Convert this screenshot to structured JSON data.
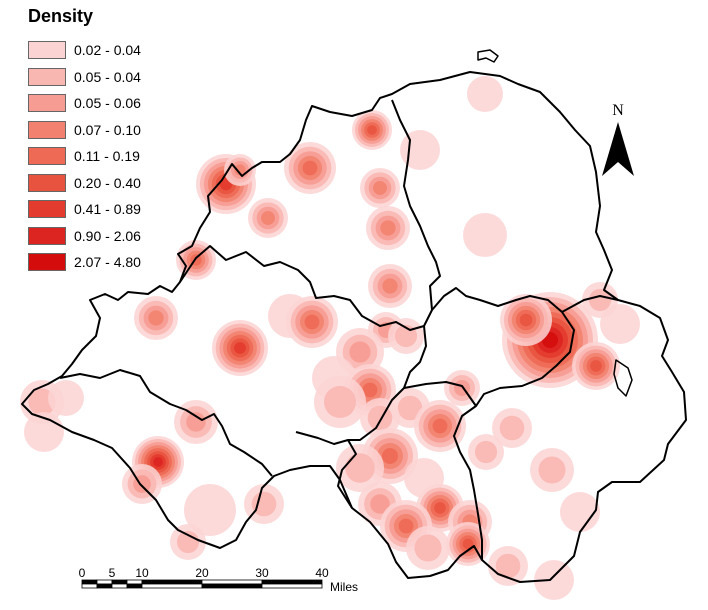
{
  "legend": {
    "title": "Density",
    "classes": [
      {
        "label": "0.02 - 0.04",
        "color": "#fcd3d3"
      },
      {
        "label": "0.05 - 0.04",
        "color": "#f9b7b2"
      },
      {
        "label": "0.05 - 0.06",
        "color": "#f69c92"
      },
      {
        "label": "0.07 - 0.10",
        "color": "#f2826f"
      },
      {
        "label": "0.11 - 0.19",
        "color": "#ee6a55"
      },
      {
        "label": "0.20 - 0.40",
        "color": "#e8533f"
      },
      {
        "label": "0.41 - 0.89",
        "color": "#e33b2e"
      },
      {
        "label": "0.90 - 2.06",
        "color": "#dc2420"
      },
      {
        "label": "2.07 - 4.80",
        "color": "#d40c0c"
      }
    ]
  },
  "north_arrow": {
    "label": "N"
  },
  "scale_bar": {
    "ticks": [
      "0",
      "5",
      "10",
      "20",
      "30",
      "40"
    ],
    "units": "Miles"
  },
  "colors": {
    "boundary": "#000000",
    "hotspot_core": "#d40c0c",
    "hotspot_halo": "#fcd3d3"
  }
}
